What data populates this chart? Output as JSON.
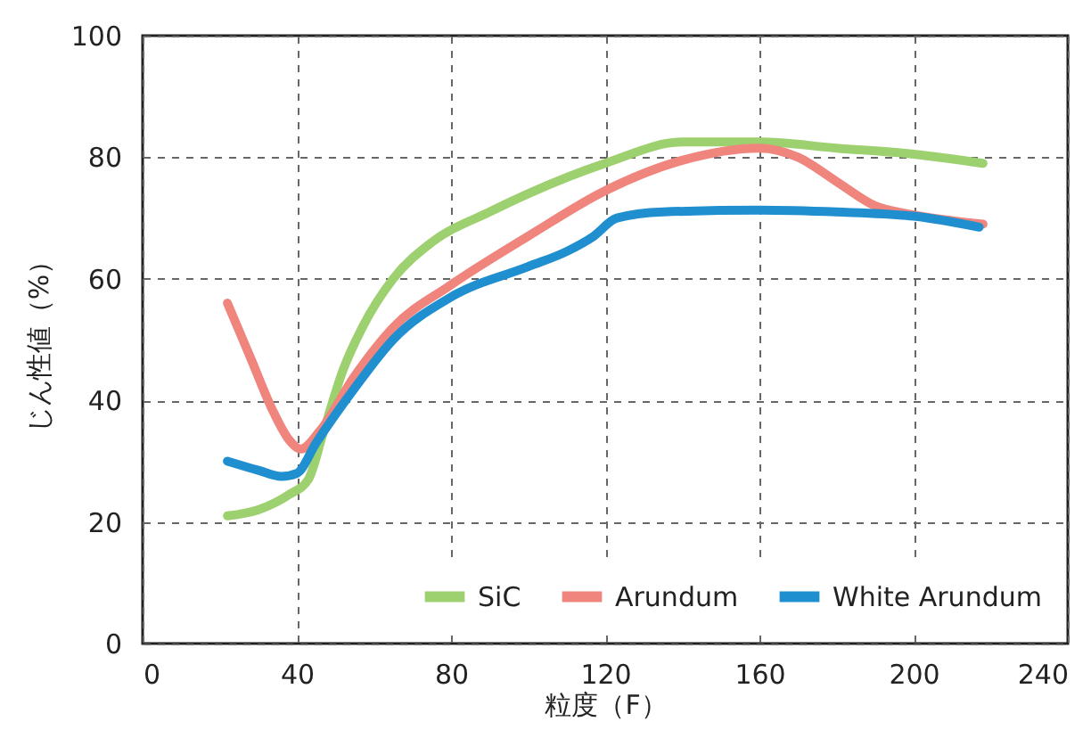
{
  "chart_data": {
    "type": "line",
    "xlabel": "粒度（F）",
    "ylabel": "じん性値（%）",
    "xlim": [
      0,
      240
    ],
    "xticks": [
      0,
      40,
      80,
      120,
      160,
      200,
      240
    ],
    "ylim": [
      0,
      100
    ],
    "yticks": [
      0,
      20,
      40,
      60,
      80,
      100
    ],
    "grid": true,
    "legend": "bottom right",
    "line_style": "solid",
    "series": [
      {
        "name": "SiC",
        "color": "#9dd06e",
        "x": [
          22,
          30,
          38,
          43,
          47,
          52,
          57,
          65,
          75,
          90,
          100,
          120,
          140,
          160,
          180,
          200,
          218
        ],
        "values": [
          21,
          22,
          24.5,
          27,
          35,
          45,
          52,
          60,
          66,
          71,
          74,
          79,
          82.5,
          82.5,
          81.5,
          80.5,
          79
        ]
      },
      {
        "name": "Arundum",
        "color": "#f0857e",
        "x": [
          22,
          28,
          34,
          38,
          41,
          46,
          55,
          65,
          80,
          100,
          120,
          140,
          160,
          170,
          180,
          190,
          200,
          218
        ],
        "values": [
          56,
          47,
          38,
          33.5,
          32,
          35,
          44,
          52,
          59,
          67,
          74.5,
          79.5,
          81.5,
          80,
          76,
          72,
          70.5,
          69
        ]
      },
      {
        "name": "White Arundum",
        "color": "#1f8fd0",
        "x": [
          22,
          30,
          36,
          40,
          45,
          55,
          65,
          80,
          100,
          110,
          117,
          123,
          135,
          160,
          180,
          200,
          217
        ],
        "values": [
          30,
          28.5,
          27.5,
          28,
          33,
          42,
          50,
          57,
          62,
          64.5,
          67,
          70,
          71,
          71.3,
          71,
          70.3,
          68.5
        ]
      }
    ]
  }
}
